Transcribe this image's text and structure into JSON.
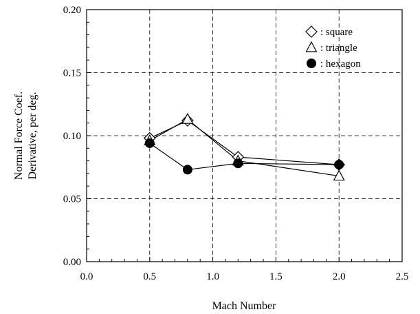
{
  "chart_data": {
    "type": "line",
    "xlabel": "Mach Number",
    "ylabel": [
      "Normal Force Coef.",
      "Derivative, per deg."
    ],
    "xlim": [
      0.0,
      2.5
    ],
    "ylim": [
      0.0,
      0.2
    ],
    "x_ticks": [
      "0.0",
      "0.5",
      "1.0",
      "1.5",
      "2.0",
      "2.5"
    ],
    "y_ticks": [
      "0.00",
      "0.05",
      "0.10",
      "0.15",
      "0.20"
    ],
    "grid": true,
    "legend_position": "top-right",
    "series": [
      {
        "name": ": square",
        "marker": "diamond",
        "x": [
          0.5,
          0.8,
          1.2,
          2.0
        ],
        "y": [
          0.098,
          0.112,
          0.083,
          0.077
        ]
      },
      {
        "name": ": triangle",
        "marker": "triangle",
        "x": [
          0.5,
          0.8,
          1.2,
          2.0
        ],
        "y": [
          0.096,
          0.113,
          0.08,
          0.068
        ]
      },
      {
        "name": ": hexagon",
        "marker": "circle",
        "x": [
          0.5,
          0.8,
          1.2,
          2.0
        ],
        "y": [
          0.094,
          0.073,
          0.078,
          0.077
        ]
      }
    ]
  }
}
